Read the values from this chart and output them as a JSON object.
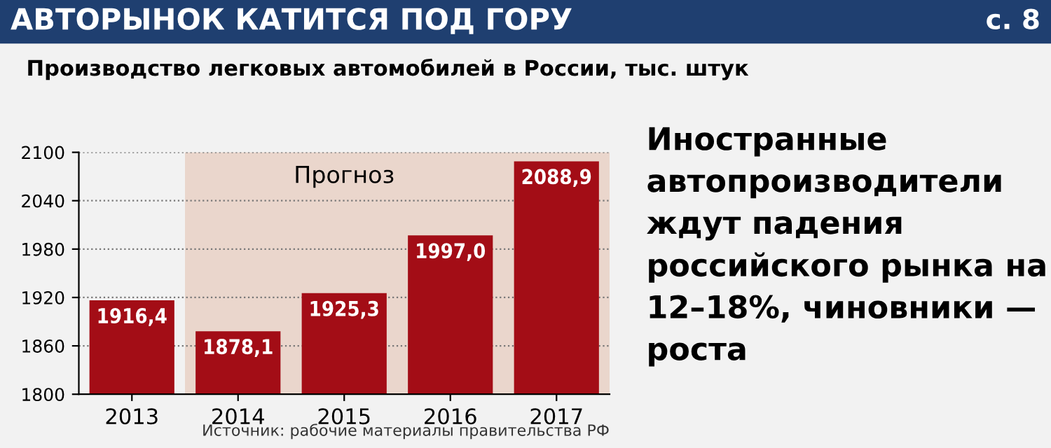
{
  "chart_data": {
    "type": "bar",
    "title": "АВТОРЫНОК КАТИТСЯ ПОД ГОРУ",
    "subtitle": "Производство легковых автомобилей в России, тыс. штук",
    "annotations": [
      "с. 8",
      "Источник: рабочие материалы правительства РФ",
      "Иностранные автопроизводители ждут падения российского рынка на 12–18%, чиновники — роста"
    ],
    "categories": [
      "2013",
      "2014",
      "2015",
      "2016",
      "2017"
    ],
    "values": [
      1916.4,
      1878.1,
      1925.3,
      1997.0,
      2088.9
    ],
    "value_labels": [
      "1916,4",
      "1878,1",
      "1925,3",
      "1997,0",
      "2088,9"
    ],
    "color": "#a30d16",
    "ylim": [
      1800,
      2100
    ],
    "yticks": [
      1800,
      1860,
      1920,
      1980,
      2040,
      2100
    ],
    "grid": "y",
    "bands": [
      {
        "axis": "x",
        "from": "2014",
        "to": "2017",
        "label": "Прогноз",
        "color": "#ead6cc"
      }
    ]
  }
}
